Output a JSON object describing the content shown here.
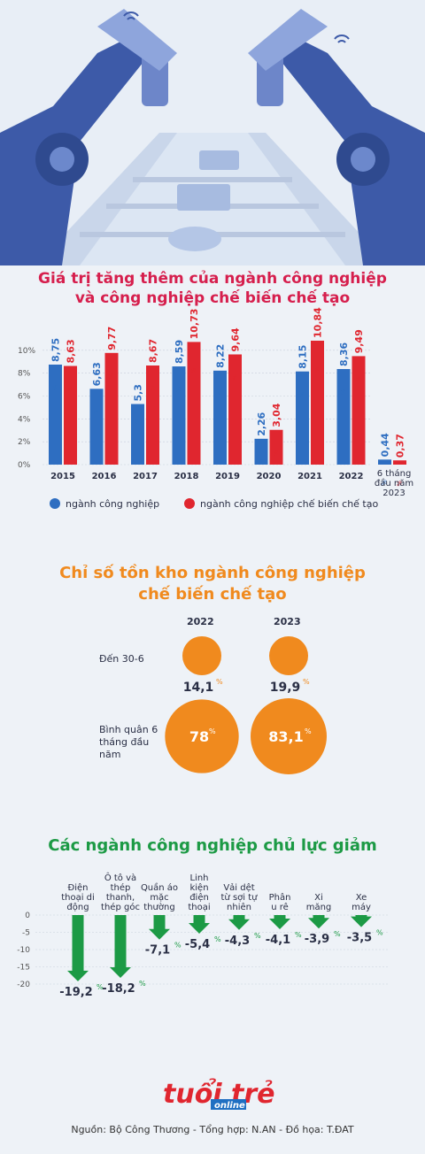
{
  "colors": {
    "blue": "#2e6ec1",
    "red": "#e0262f",
    "orange": "#f08a1e",
    "green": "#1c9a45",
    "title_red": "#d61f4d"
  },
  "chart1_title_line1": "Giá trị tăng thêm của ngành công nghiệp",
  "chart1_title_line2": "và công nghiệp chế biến chế tạo",
  "chart2_title_line1": "Chỉ số tồn kho ngành công nghiệp",
  "chart2_title_line2": "chế biến chế tạo",
  "chart3_title": "Các ngành công nghiệp chủ lực giảm",
  "footer": "Nguồn: Bộ Công Thương - Tổng hợp: N.AN - Đồ họa: T.ĐAT",
  "logo": "tuổi trẻ online",
  "chart_data": [
    {
      "type": "bar",
      "title": "Giá trị tăng thêm của ngành công nghiệp và công nghiệp chế biến chế tạo",
      "categories": [
        "2015",
        "2016",
        "2017",
        "2018",
        "2019",
        "2020",
        "2021",
        "2022",
        "6 tháng đầu năm 2023"
      ],
      "series": [
        {
          "name": "ngành công nghiệp",
          "values": [
            8.75,
            6.63,
            5.3,
            8.59,
            8.22,
            2.26,
            8.15,
            8.36,
            0.44
          ],
          "labels": [
            "8,75",
            "6,63",
            "5,3",
            "8,59",
            "8,22",
            "2,26",
            "8,15",
            "8,36",
            "0,44"
          ]
        },
        {
          "name": "ngành công nghiệp chế biến chế tạo",
          "values": [
            8.63,
            9.77,
            8.67,
            10.73,
            9.64,
            3.04,
            10.84,
            9.49,
            0.37
          ],
          "labels": [
            "8,63",
            "9,77",
            "8,67",
            "10,73",
            "9,64",
            "3,04",
            "10,84",
            "9,49",
            "0,37"
          ]
        }
      ],
      "y_ticks": [
        "10%",
        "8%",
        "6%",
        "4%",
        "2%",
        "0%"
      ],
      "ylim": [
        0,
        12
      ],
      "unit": "%",
      "grid": true,
      "legend": "bottom"
    },
    {
      "type": "bubble",
      "title": "Chỉ số tồn kho ngành công nghiệp chế biến chế tạo",
      "columns": [
        "2022",
        "2023"
      ],
      "rows": [
        {
          "label": "Đến 30-6",
          "values": [
            14.1,
            19.9
          ],
          "labels": [
            "14,1",
            "19,9"
          ]
        },
        {
          "label": "Bình quân 6 tháng đầu năm",
          "values": [
            78,
            83.1
          ],
          "labels": [
            "78",
            "83,1"
          ]
        }
      ],
      "unit": "%"
    },
    {
      "type": "bar",
      "title": "Các ngành công nghiệp chủ lực giảm",
      "categories": [
        "Điện thoại di động",
        "Ô tô và thép thanh, thép góc",
        "Quần áo mặc thường",
        "Linh kiện điện thoại",
        "Vải dệt từ sợi tự nhiên",
        "Phân u rê",
        "Xi măng",
        "Xe máy"
      ],
      "values": [
        -19.2,
        -18.2,
        -7.1,
        -5.4,
        -4.3,
        -4.1,
        -3.9,
        -3.5
      ],
      "labels": [
        "-19,2",
        "-18,2",
        "-7,1",
        "-5,4",
        "-4,3",
        "-4,1",
        "-3,9",
        "-3,5"
      ],
      "y_ticks": [
        "0",
        "-5",
        "-10",
        "-15",
        "-20"
      ],
      "ylim": [
        -20,
        0
      ],
      "unit": "%",
      "grid": true
    }
  ]
}
